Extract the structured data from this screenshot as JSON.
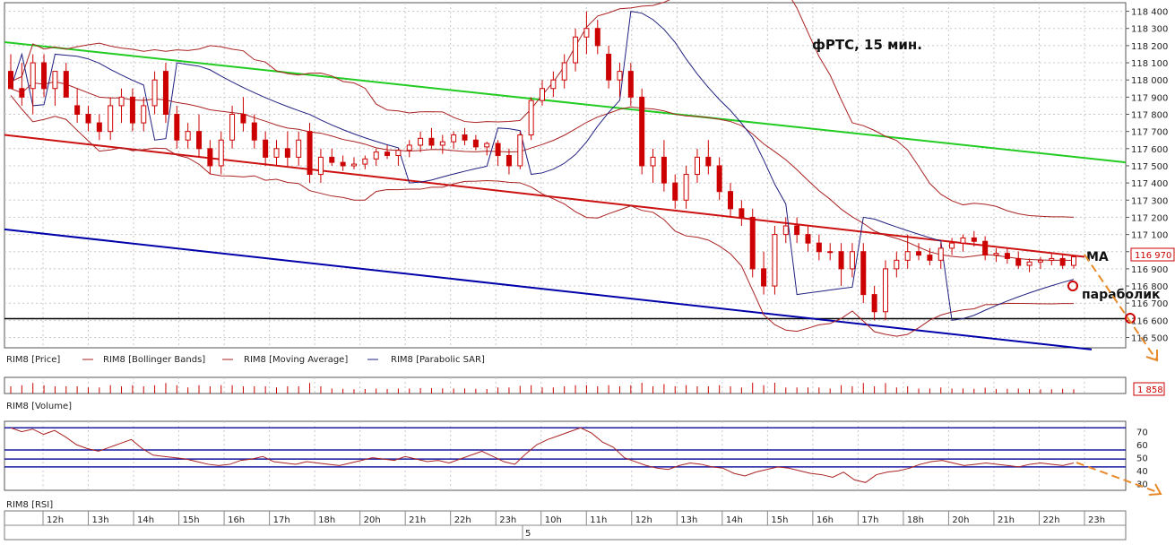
{
  "chart_data": [
    {
      "type": "candlestick",
      "annotation_title": "фРТС, 15 мин.",
      "price_axis": {
        "ticks": [
          118400,
          118300,
          118200,
          118100,
          118000,
          117900,
          117800,
          117700,
          117600,
          117500,
          117400,
          117300,
          117200,
          117100,
          117000,
          116900,
          116800,
          116700,
          116600,
          116500
        ],
        "tick_labels": [
          "118 400",
          "118 300",
          "118 200",
          "118 100",
          "118 000",
          "117 900",
          "117 800",
          "117 700",
          "117 600",
          "117 500",
          "117 400",
          "117 300",
          "117 200",
          "117 100",
          "116 900",
          "116 800",
          "116 700",
          "116 600",
          "116 500"
        ],
        "ylim": [
          116440,
          118450
        ],
        "last_price_label": "116 970",
        "last_price": 116970
      },
      "legend": [
        {
          "label": "RIM8 [Price]",
          "color": "#cc0000"
        },
        {
          "label": "RIM8 [Bollinger Bands]",
          "color": "#aa2222"
        },
        {
          "label": "RIM8 [Moving Average]",
          "color": "#aa2222"
        },
        {
          "label": "RIM8 [Parabolic SAR]",
          "color": "#202080"
        }
      ],
      "annotations": {
        "ma_label": "MA",
        "sar_label": "параболик"
      },
      "levels": {
        "support": 116610
      },
      "trendlines": [
        {
          "name": "upper-green",
          "color": "#22cc22",
          "from": [
            0,
            118220
          ],
          "to": [
            1,
            117520
          ]
        },
        {
          "name": "middle-red",
          "color": "#cc1111",
          "from": [
            0,
            117680
          ],
          "to": [
            1,
            116970
          ]
        },
        {
          "name": "lower-blue",
          "color": "#0000aa",
          "from": [
            0,
            117130
          ],
          "to": [
            1,
            116430
          ]
        }
      ],
      "candles": [
        [
          118050,
          118150,
          117950,
          117950
        ],
        [
          117950,
          118100,
          117850,
          117900
        ],
        [
          117950,
          118150,
          117800,
          118100
        ],
        [
          118100,
          118150,
          117900,
          117950
        ],
        [
          117950,
          118050,
          117850,
          118050
        ],
        [
          118050,
          118100,
          117900,
          117900
        ],
        [
          117850,
          117950,
          117750,
          117800
        ],
        [
          117800,
          117850,
          117700,
          117750
        ],
        [
          117750,
          117800,
          117650,
          117700
        ],
        [
          117700,
          117900,
          117650,
          117850
        ],
        [
          117850,
          117950,
          117750,
          117900
        ],
        [
          117900,
          117950,
          117700,
          117750
        ],
        [
          117750,
          117900,
          117700,
          117850
        ],
        [
          117850,
          118050,
          117800,
          118000
        ],
        [
          118050,
          118100,
          117750,
          117800
        ],
        [
          117800,
          117850,
          117600,
          117650
        ],
        [
          117650,
          117750,
          117600,
          117700
        ],
        [
          117700,
          117800,
          117550,
          117600
        ],
        [
          117600,
          117650,
          117450,
          117500
        ],
        [
          117500,
          117700,
          117450,
          117650
        ],
        [
          117650,
          117850,
          117600,
          117800
        ],
        [
          117800,
          117900,
          117700,
          117750
        ],
        [
          117750,
          117800,
          117600,
          117650
        ],
        [
          117650,
          117700,
          117500,
          117550
        ],
        [
          117550,
          117650,
          117500,
          117600
        ],
        [
          117600,
          117700,
          117500,
          117550
        ],
        [
          117550,
          117700,
          117500,
          117650
        ],
        [
          117700,
          117750,
          117400,
          117450
        ],
        [
          117450,
          117600,
          117400,
          117550
        ],
        [
          117550,
          117600,
          117500,
          117520
        ],
        [
          117520,
          117560,
          117470,
          117500
        ],
        [
          117500,
          117550,
          117480,
          117510
        ],
        [
          117510,
          117560,
          117480,
          117540
        ],
        [
          117540,
          117600,
          117500,
          117580
        ],
        [
          117580,
          117620,
          117540,
          117560
        ],
        [
          117560,
          117600,
          117500,
          117590
        ],
        [
          117590,
          117650,
          117550,
          117620
        ],
        [
          117620,
          117700,
          117580,
          117660
        ],
        [
          117660,
          117720,
          117600,
          117620
        ],
        [
          117620,
          117680,
          117570,
          117640
        ],
        [
          117640,
          117700,
          117600,
          117680
        ],
        [
          117680,
          117720,
          117620,
          117650
        ],
        [
          117650,
          117680,
          117590,
          117610
        ],
        [
          117610,
          117640,
          117560,
          117630
        ],
        [
          117630,
          117650,
          117500,
          117560
        ],
        [
          117560,
          117600,
          117450,
          117500
        ],
        [
          117500,
          117700,
          117480,
          117680
        ],
        [
          117680,
          117900,
          117650,
          117880
        ],
        [
          117880,
          118000,
          117850,
          117950
        ],
        [
          117950,
          118050,
          117900,
          118000
        ],
        [
          118000,
          118150,
          117950,
          118100
        ],
        [
          118100,
          118300,
          118050,
          118250
        ],
        [
          118250,
          118400,
          118150,
          118300
        ],
        [
          118300,
          118350,
          118150,
          118200
        ],
        [
          118150,
          118200,
          117950,
          118000
        ],
        [
          118000,
          118100,
          117900,
          118050
        ],
        [
          118050,
          118100,
          117850,
          117900
        ],
        [
          117900,
          117950,
          117450,
          117500
        ],
        [
          117500,
          117600,
          117400,
          117550
        ],
        [
          117550,
          117650,
          117350,
          117400
        ],
        [
          117400,
          117450,
          117250,
          117300
        ],
        [
          117300,
          117500,
          117250,
          117450
        ],
        [
          117450,
          117600,
          117400,
          117550
        ],
        [
          117550,
          117650,
          117450,
          117500
        ],
        [
          117500,
          117550,
          117300,
          117350
        ],
        [
          117350,
          117400,
          117200,
          117250
        ],
        [
          117250,
          117300,
          117150,
          117200
        ],
        [
          117200,
          117250,
          116850,
          116900
        ],
        [
          116900,
          117000,
          116750,
          116800
        ],
        [
          116800,
          117150,
          116750,
          117100
        ],
        [
          117100,
          117200,
          117050,
          117150
        ],
        [
          117150,
          117200,
          117050,
          117100
        ],
        [
          117100,
          117150,
          117000,
          117050
        ],
        [
          117050,
          117100,
          116950,
          117000
        ],
        [
          117000,
          117050,
          116950,
          117000
        ],
        [
          117000,
          117050,
          116800,
          116900
        ],
        [
          116900,
          117050,
          116850,
          117000
        ],
        [
          117000,
          117050,
          116700,
          116750
        ],
        [
          116750,
          116800,
          116600,
          116650
        ],
        [
          116650,
          116950,
          116600,
          116900
        ],
        [
          116900,
          117000,
          116850,
          116950
        ],
        [
          116950,
          117100,
          116900,
          117000
        ],
        [
          117000,
          117050,
          116950,
          116980
        ],
        [
          116980,
          117020,
          116920,
          116950
        ],
        [
          116950,
          117050,
          116900,
          117020
        ],
        [
          117020,
          117080,
          116980,
          117050
        ],
        [
          117050,
          117100,
          117000,
          117080
        ],
        [
          117080,
          117120,
          117030,
          117060
        ],
        [
          117060,
          117090,
          116950,
          116980
        ],
        [
          116980,
          117020,
          116940,
          116990
        ],
        [
          116990,
          117020,
          116930,
          116960
        ],
        [
          116960,
          117000,
          116900,
          116920
        ],
        [
          116920,
          116960,
          116880,
          116940
        ],
        [
          116940,
          116970,
          116900,
          116950
        ],
        [
          116950,
          116990,
          116920,
          116960
        ],
        [
          116960,
          116990,
          116900,
          116920
        ],
        [
          116920,
          116970,
          116900,
          116970
        ]
      ],
      "volume": {
        "label": "RIM8 [Volume]",
        "last_value_label": "1 858"
      },
      "rsi": {
        "label": "RIM8 [RSI]",
        "ticks": [
          70,
          60,
          50,
          40,
          30
        ],
        "levels": [
          73,
          56,
          49,
          43
        ],
        "values": [
          73,
          70,
          72,
          68,
          71,
          66,
          60,
          57,
          55,
          58,
          61,
          64,
          57,
          52,
          51,
          50,
          49,
          47,
          45,
          44,
          45,
          48,
          49,
          51,
          47,
          46,
          45,
          47,
          46,
          45,
          44,
          46,
          48,
          50,
          49,
          48,
          51,
          49,
          47,
          48,
          46,
          49,
          52,
          55,
          51,
          47,
          45,
          53,
          60,
          64,
          67,
          70,
          73,
          69,
          62,
          58,
          50,
          47,
          44,
          42,
          41,
          44,
          46,
          45,
          43,
          42,
          38,
          36,
          39,
          41,
          43,
          42,
          40,
          38,
          37,
          35,
          39,
          33,
          31,
          37,
          39,
          40,
          42,
          45,
          47,
          48,
          46,
          44,
          45,
          46,
          45,
          44,
          43,
          45,
          46,
          45,
          44,
          46
        ],
        "ylim": [
          25,
          78
        ]
      },
      "time_axis": {
        "labels": [
          "12h",
          "13h",
          "14h",
          "15h",
          "16h",
          "17h",
          "18h",
          "20h",
          "21h",
          "22h",
          "23h",
          "10h",
          "11h",
          "12h",
          "13h",
          "14h",
          "15h",
          "16h",
          "17h",
          "18h",
          "20h",
          "21h",
          "22h",
          "23h"
        ],
        "date_label": "5"
      }
    }
  ]
}
